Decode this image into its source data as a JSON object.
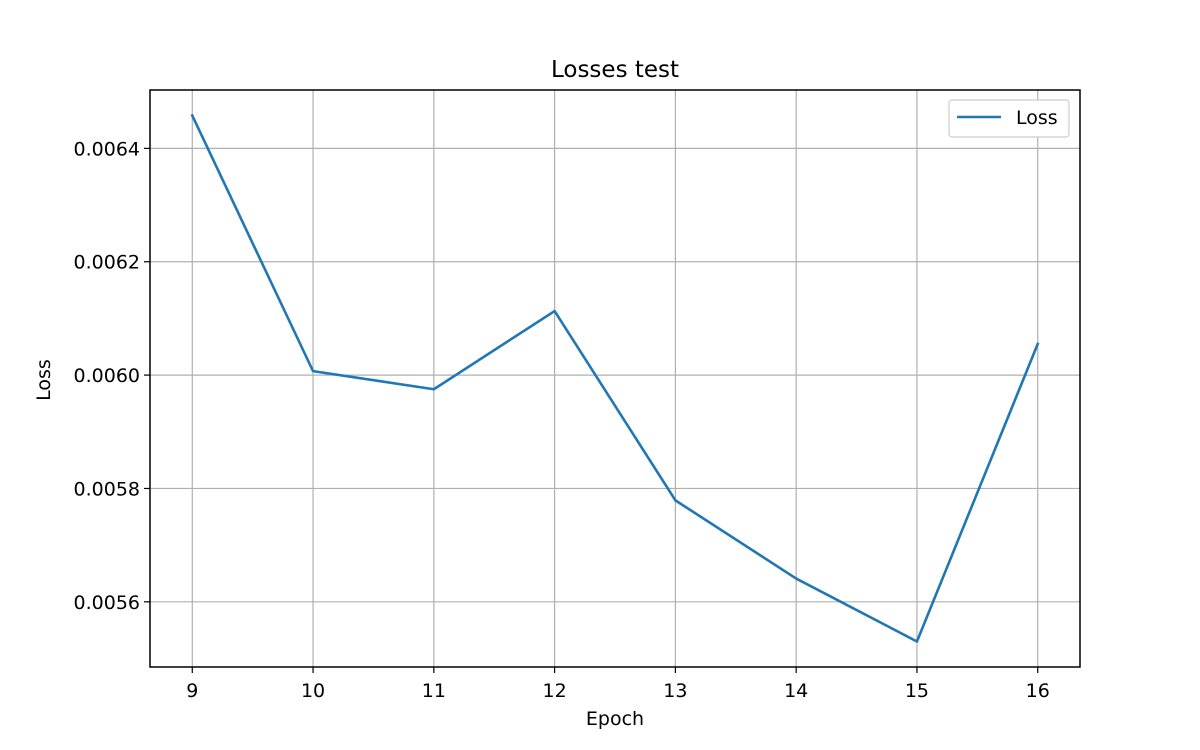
{
  "chart_data": {
    "type": "line",
    "title": "Losses test",
    "xlabel": "Epoch",
    "ylabel": "Loss",
    "x": [
      9,
      10,
      11,
      12,
      13,
      14,
      15,
      16
    ],
    "series": [
      {
        "name": "Loss",
        "values": [
          0.006458,
          0.006007,
          0.005975,
          0.006113,
          0.005779,
          0.005641,
          0.00553,
          0.006055
        ],
        "color": "#1f77b4"
      }
    ],
    "xlim": [
      8.65,
      16.35
    ],
    "ylim": [
      0.005485,
      0.006503
    ],
    "xticks": [
      9,
      10,
      11,
      12,
      13,
      14,
      15,
      16
    ],
    "xtick_labels": [
      "9",
      "10",
      "11",
      "12",
      "13",
      "14",
      "15",
      "16"
    ],
    "yticks": [
      0.0056,
      0.0058,
      0.006,
      0.0062,
      0.0064
    ],
    "ytick_labels": [
      "0.0056",
      "0.0058",
      "0.0060",
      "0.0062",
      "0.0064"
    ],
    "grid": true,
    "legend_position": "top-right"
  }
}
